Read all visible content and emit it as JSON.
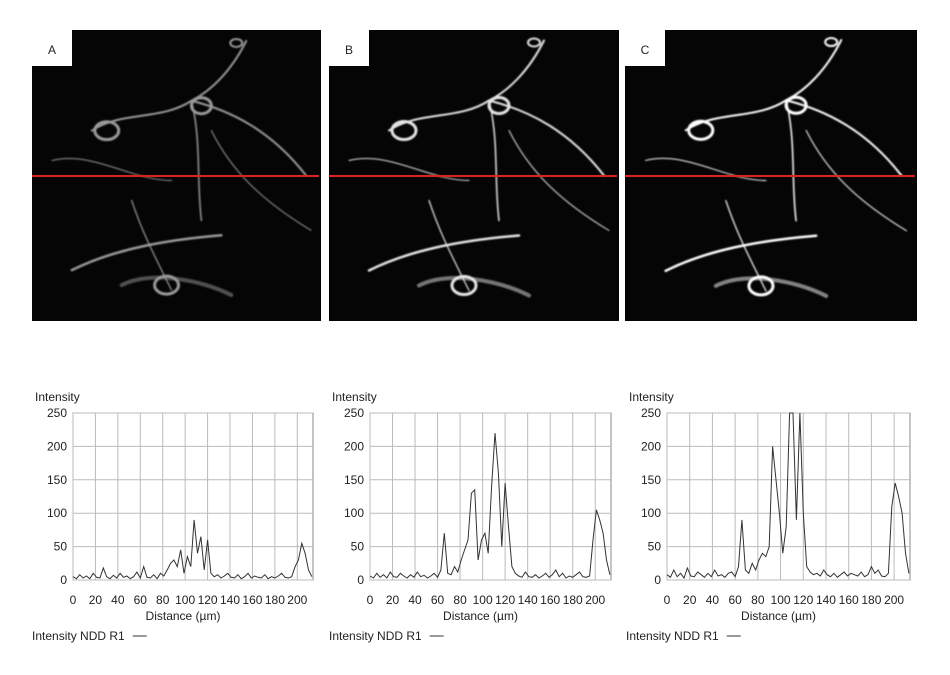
{
  "panels": [
    "A",
    "B",
    "C"
  ],
  "chart_data": [
    {
      "type": "line",
      "y_label": "Intensity",
      "x_label": "Distance (µm)",
      "x": [
        0,
        3,
        6,
        9,
        12,
        15,
        18,
        21,
        24,
        27,
        30,
        33,
        36,
        39,
        42,
        45,
        48,
        51,
        54,
        57,
        60,
        63,
        66,
        69,
        72,
        75,
        78,
        81,
        84,
        87,
        90,
        93,
        96,
        99,
        102,
        105,
        108,
        111,
        114,
        117,
        120,
        123,
        126,
        129,
        132,
        135,
        138,
        141,
        144,
        147,
        150,
        153,
        156,
        159,
        162,
        165,
        168,
        171,
        174,
        177,
        180,
        183,
        186,
        189,
        192,
        195,
        198,
        201,
        204,
        207,
        210,
        213
      ],
      "series": [
        {
          "name": "Intensity NDD R1",
          "color": "#333333",
          "values": [
            5,
            2,
            8,
            3,
            6,
            2,
            10,
            4,
            3,
            18,
            5,
            2,
            7,
            3,
            10,
            4,
            6,
            2,
            5,
            12,
            3,
            20,
            4,
            3,
            8,
            2,
            10,
            6,
            15,
            25,
            30,
            20,
            45,
            10,
            35,
            20,
            90,
            40,
            65,
            15,
            60,
            10,
            5,
            8,
            3,
            6,
            10,
            4,
            3,
            8,
            2,
            5,
            10,
            3,
            6,
            4,
            3,
            8,
            2,
            5,
            3,
            6,
            10,
            4,
            3,
            5,
            20,
            30,
            55,
            40,
            15,
            5
          ]
        }
      ],
      "xlim": [
        0,
        214
      ],
      "ylim": [
        0,
        250
      ],
      "xticks": [
        0,
        20,
        40,
        60,
        80,
        100,
        120,
        140,
        160,
        180,
        200
      ],
      "yticks": [
        0,
        50,
        100,
        150,
        200,
        250
      ],
      "grid": true
    },
    {
      "type": "line",
      "y_label": "Intensity",
      "x_label": "Distance (µm)",
      "x": [
        0,
        3,
        6,
        9,
        12,
        15,
        18,
        21,
        24,
        27,
        30,
        33,
        36,
        39,
        42,
        45,
        48,
        51,
        54,
        57,
        60,
        63,
        66,
        69,
        72,
        75,
        78,
        81,
        84,
        87,
        90,
        93,
        96,
        99,
        102,
        105,
        108,
        111,
        114,
        117,
        120,
        123,
        126,
        129,
        132,
        135,
        138,
        141,
        144,
        147,
        150,
        153,
        156,
        159,
        162,
        165,
        168,
        171,
        174,
        177,
        180,
        183,
        186,
        189,
        192,
        195,
        198,
        201,
        204,
        207,
        210,
        213
      ],
      "series": [
        {
          "name": "Intensity NDD R1",
          "color": "#333333",
          "values": [
            6,
            3,
            10,
            4,
            8,
            3,
            12,
            5,
            4,
            10,
            6,
            3,
            8,
            4,
            12,
            5,
            7,
            3,
            6,
            10,
            4,
            15,
            70,
            10,
            8,
            20,
            12,
            30,
            45,
            60,
            130,
            135,
            30,
            60,
            70,
            40,
            140,
            220,
            160,
            50,
            145,
            80,
            20,
            10,
            6,
            4,
            12,
            5,
            4,
            8,
            3,
            6,
            10,
            4,
            8,
            15,
            5,
            10,
            3,
            6,
            4,
            8,
            12,
            5,
            4,
            6,
            60,
            105,
            90,
            70,
            30,
            8
          ]
        }
      ],
      "xlim": [
        0,
        214
      ],
      "ylim": [
        0,
        250
      ],
      "xticks": [
        0,
        20,
        40,
        60,
        80,
        100,
        120,
        140,
        160,
        180,
        200
      ],
      "yticks": [
        0,
        50,
        100,
        150,
        200,
        250
      ],
      "grid": true
    },
    {
      "type": "line",
      "y_label": "Intensity",
      "x_label": "Distance (µm)",
      "x": [
        0,
        3,
        6,
        9,
        12,
        15,
        18,
        21,
        24,
        27,
        30,
        33,
        36,
        39,
        42,
        45,
        48,
        51,
        54,
        57,
        60,
        63,
        66,
        69,
        72,
        75,
        78,
        81,
        84,
        87,
        90,
        93,
        96,
        99,
        102,
        105,
        108,
        111,
        114,
        117,
        120,
        123,
        126,
        129,
        132,
        135,
        138,
        141,
        144,
        147,
        150,
        153,
        156,
        159,
        162,
        165,
        168,
        171,
        174,
        177,
        180,
        183,
        186,
        189,
        192,
        195,
        198,
        201,
        204,
        207,
        210,
        213
      ],
      "series": [
        {
          "name": "Intensity NDD R1",
          "color": "#333333",
          "values": [
            8,
            4,
            15,
            5,
            10,
            3,
            18,
            6,
            5,
            12,
            8,
            4,
            10,
            5,
            15,
            6,
            8,
            4,
            10,
            12,
            5,
            20,
            90,
            15,
            10,
            25,
            15,
            30,
            40,
            35,
            50,
            200,
            150,
            100,
            40,
            80,
            250,
            250,
            90,
            250,
            100,
            20,
            12,
            8,
            10,
            6,
            15,
            8,
            5,
            10,
            4,
            8,
            12,
            6,
            10,
            8,
            6,
            12,
            5,
            8,
            20,
            10,
            15,
            6,
            5,
            10,
            110,
            145,
            125,
            100,
            40,
            10
          ]
        }
      ],
      "xlim": [
        0,
        214
      ],
      "ylim": [
        0,
        250
      ],
      "xticks": [
        0,
        20,
        40,
        60,
        80,
        100,
        120,
        140,
        160,
        180,
        200
      ],
      "yticks": [
        0,
        50,
        100,
        150,
        200,
        250
      ],
      "grid": true
    }
  ]
}
